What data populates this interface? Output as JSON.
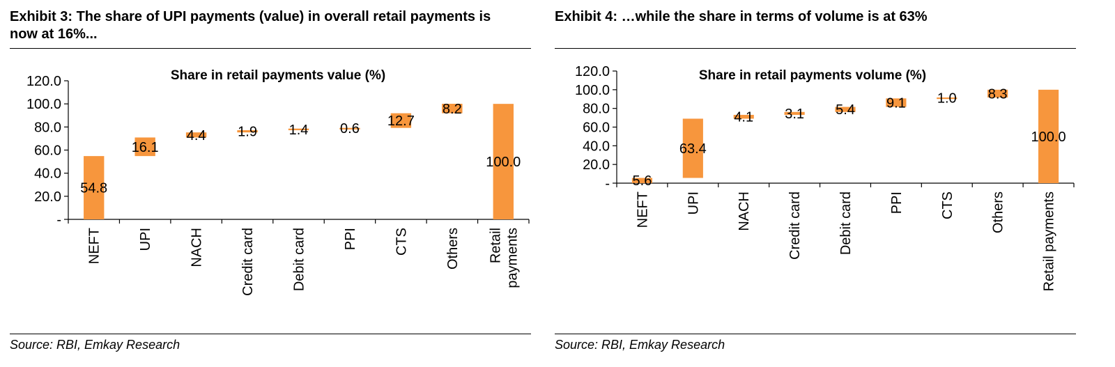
{
  "exhibits": [
    {
      "title": "Exhibit 3: The share of UPI payments (value) in overall retail payments is now at 16%...",
      "source": "Source: RBI, Emkay Research"
    },
    {
      "title": "Exhibit 4: …while the share in terms of volume is at 63%",
      "source": "Source: RBI, Emkay Research"
    }
  ],
  "colors": {
    "bar": "#F7963D",
    "axis": "#000000"
  },
  "chart_data": [
    {
      "type": "bar",
      "subtype": "waterfall",
      "title": "Share in retail payments value (%)",
      "categories": [
        "NEFT",
        "UPI",
        "NACH",
        "Credit card",
        "Debit card",
        "PPI",
        "CTS",
        "Others",
        "Retail payments"
      ],
      "category_lines": [
        [
          "NEFT"
        ],
        [
          "UPI"
        ],
        [
          "NACH"
        ],
        [
          "Credit card"
        ],
        [
          "Debit card"
        ],
        [
          "PPI"
        ],
        [
          "CTS"
        ],
        [
          "Others"
        ],
        [
          "Retail",
          "payments"
        ]
      ],
      "values": [
        54.8,
        16.1,
        4.4,
        1.9,
        1.4,
        0.6,
        12.7,
        8.2,
        100.0
      ],
      "value_labels": [
        "54.8",
        "16.1",
        "4.4",
        "1.9",
        "1.4",
        "0.6",
        "12.7",
        "8.2",
        "100.0"
      ],
      "y_ticks": [
        "-",
        "20.0",
        "40.0",
        "60.0",
        "80.0",
        "100.0",
        "120.0"
      ],
      "ylim": [
        0,
        120
      ],
      "grid": false
    },
    {
      "type": "bar",
      "subtype": "waterfall",
      "title": "Share in retail payments volume (%)",
      "categories": [
        "NEFT",
        "UPI",
        "NACH",
        "Credit card",
        "Debit card",
        "PPI",
        "CTS",
        "Others",
        "Retail payments"
      ],
      "category_lines": [
        [
          "NEFT"
        ],
        [
          "UPI"
        ],
        [
          "NACH"
        ],
        [
          "Credit card"
        ],
        [
          "Debit card"
        ],
        [
          "PPI"
        ],
        [
          "CTS"
        ],
        [
          "Others"
        ],
        [
          "Retail payments"
        ]
      ],
      "values": [
        5.6,
        63.4,
        4.1,
        3.1,
        5.4,
        9.1,
        1.0,
        8.3,
        100.0
      ],
      "value_labels": [
        "5.6",
        "63.4",
        "4.1",
        "3.1",
        "5.4",
        "9.1",
        "1.0",
        "8.3",
        "100.0"
      ],
      "y_ticks": [
        "-",
        "20.0",
        "40.0",
        "60.0",
        "80.0",
        "100.0",
        "120.0"
      ],
      "ylim": [
        0,
        120
      ],
      "grid": false
    }
  ]
}
